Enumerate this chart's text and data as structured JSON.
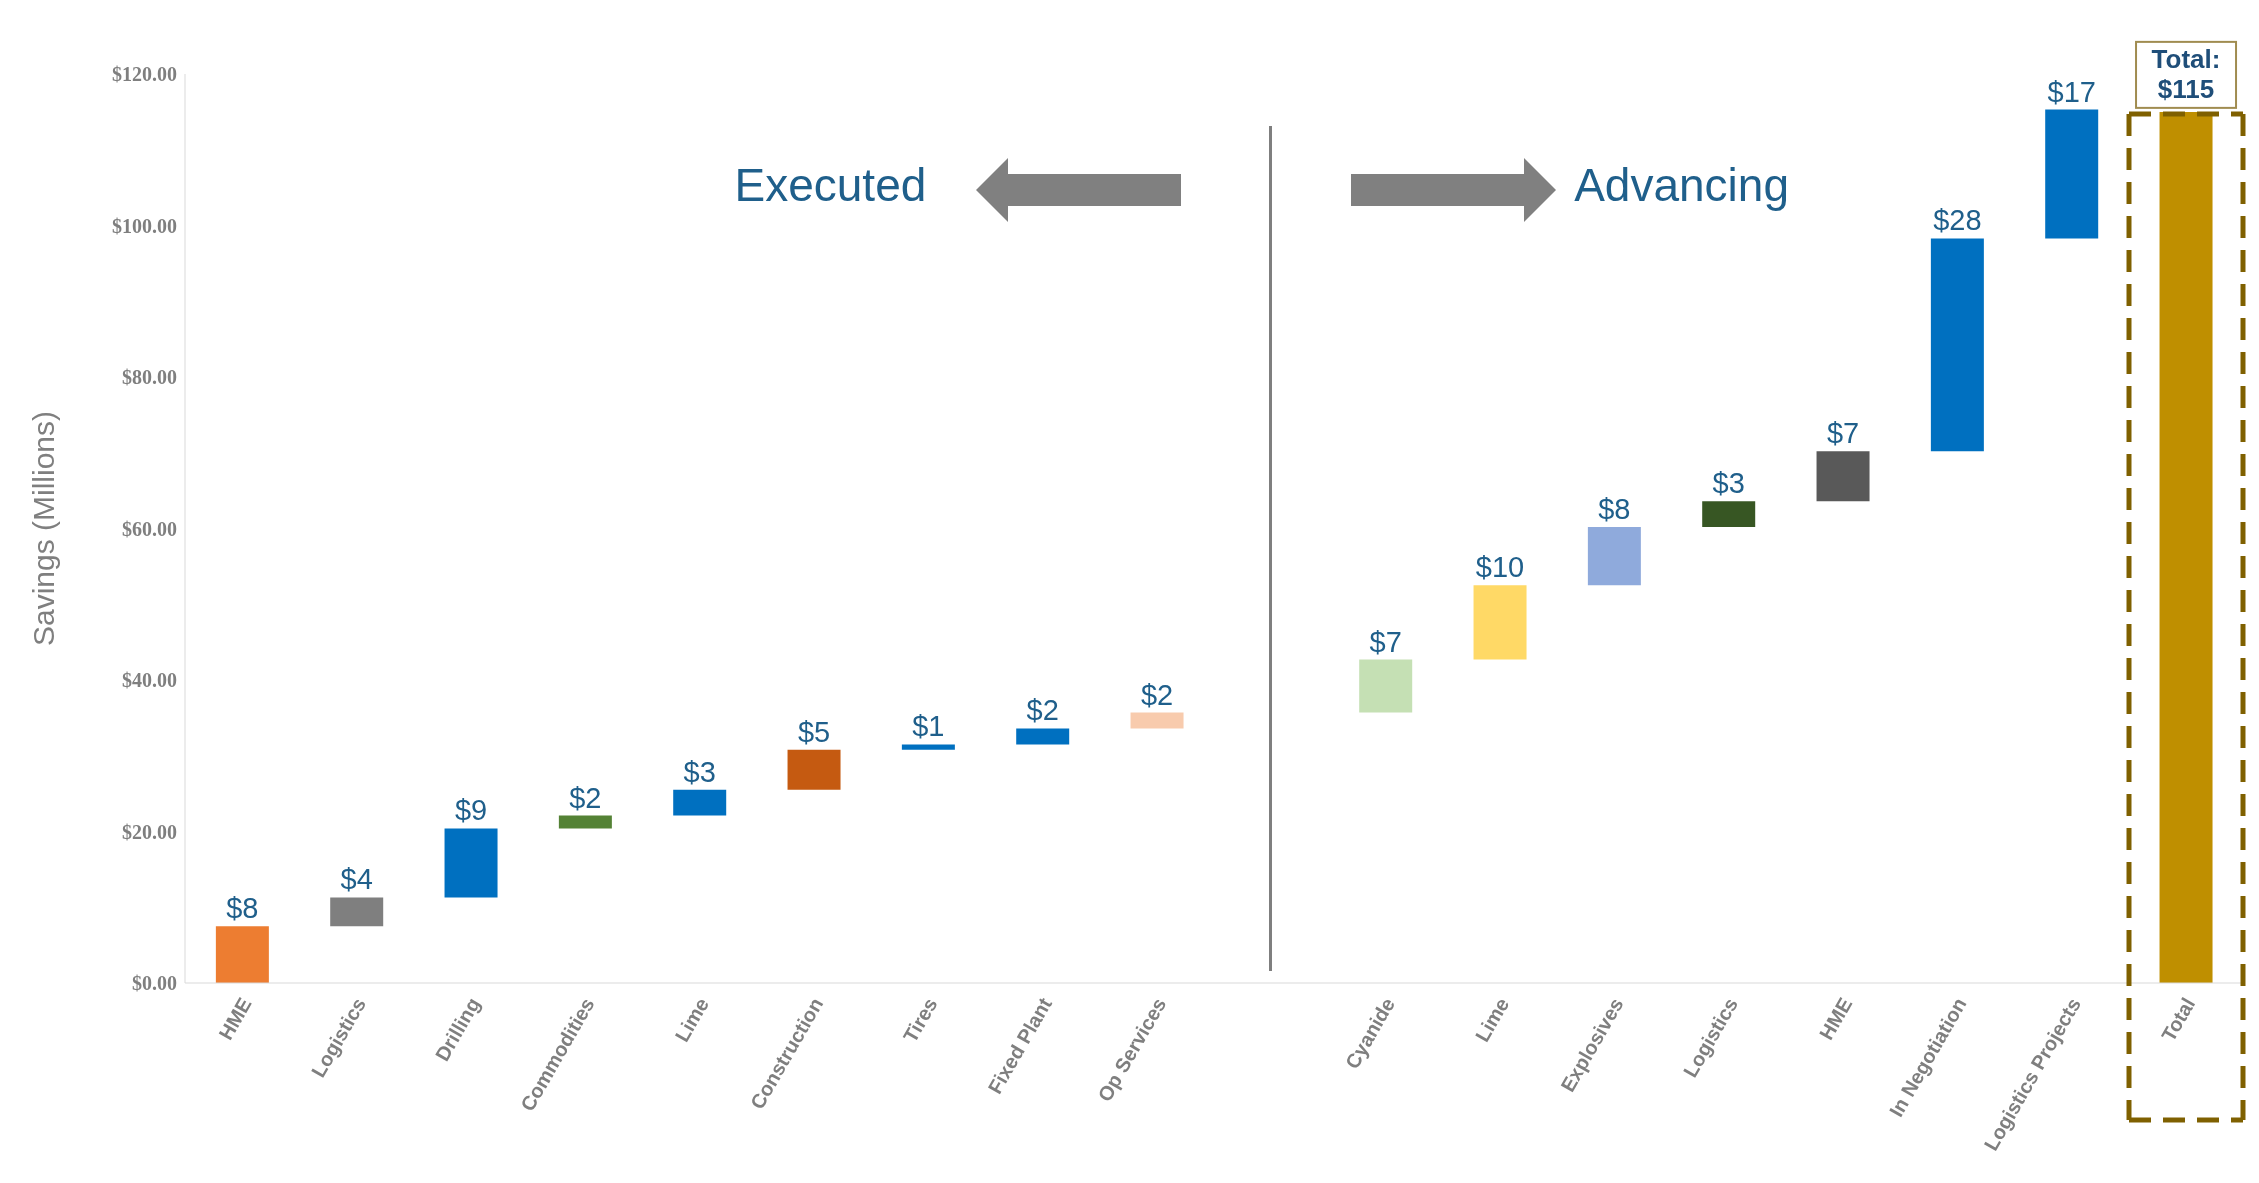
{
  "chart_data": {
    "type": "bar",
    "ylabel": "Savings (Millions)",
    "categories": [
      "HME",
      "Logistics",
      "Drilling",
      "Commodities",
      "Lime",
      "Construction",
      "Tires",
      "Fixed Plant",
      "Op Services",
      null,
      "Cyanide",
      "Lime",
      "Explosives",
      "Logistics",
      "HME",
      "In Negotiation",
      "Logistics Projects",
      "Total"
    ],
    "values": [
      7.5,
      3.8,
      9.1,
      1.7,
      3.4,
      5.3,
      0.7,
      2.1,
      2.1,
      null,
      7.0,
      9.8,
      7.7,
      3.4,
      6.6,
      28.1,
      17.0,
      115
    ],
    "base": [
      0,
      7.5,
      11.3,
      20.4,
      22.1,
      25.5,
      30.8,
      31.5,
      33.6,
      null,
      35.7,
      42.7,
      52.5,
      60.2,
      63.6,
      70.2,
      98.3,
      0
    ],
    "colors": [
      "#ed7d31",
      "#7f7f7f",
      "#0070c0",
      "#548235",
      "#0070c0",
      "#c55a11",
      "#0070c0",
      "#0070c0",
      "#f8cbad",
      null,
      "#c5e0b4",
      "#ffd966",
      "#8faadc",
      "#375623",
      "#595959",
      "#0070c0",
      "#0070c0",
      "#bf8f00"
    ],
    "value_labels": [
      "$8",
      "$4",
      "$9",
      "$2",
      "$3",
      "$5",
      "$1",
      "$2",
      "$2",
      null,
      "$7",
      "$10",
      "$8",
      "$3",
      "$7",
      "$28",
      "$17",
      "Total: $115"
    ],
    "ylim": [
      0,
      120
    ],
    "yticks": [
      {
        "value": 0,
        "label": "$0.00"
      },
      {
        "value": 20,
        "label": "$20.00"
      },
      {
        "value": 40,
        "label": "$40.00"
      },
      {
        "value": 60,
        "label": "$60.00"
      },
      {
        "value": 80,
        "label": "$80.00"
      },
      {
        "value": 100,
        "label": "$100.00"
      },
      {
        "value": 120,
        "label": "$120.00"
      }
    ],
    "annotations": [
      "Executed",
      "Advancing"
    ],
    "grid": false,
    "legend": false
  }
}
